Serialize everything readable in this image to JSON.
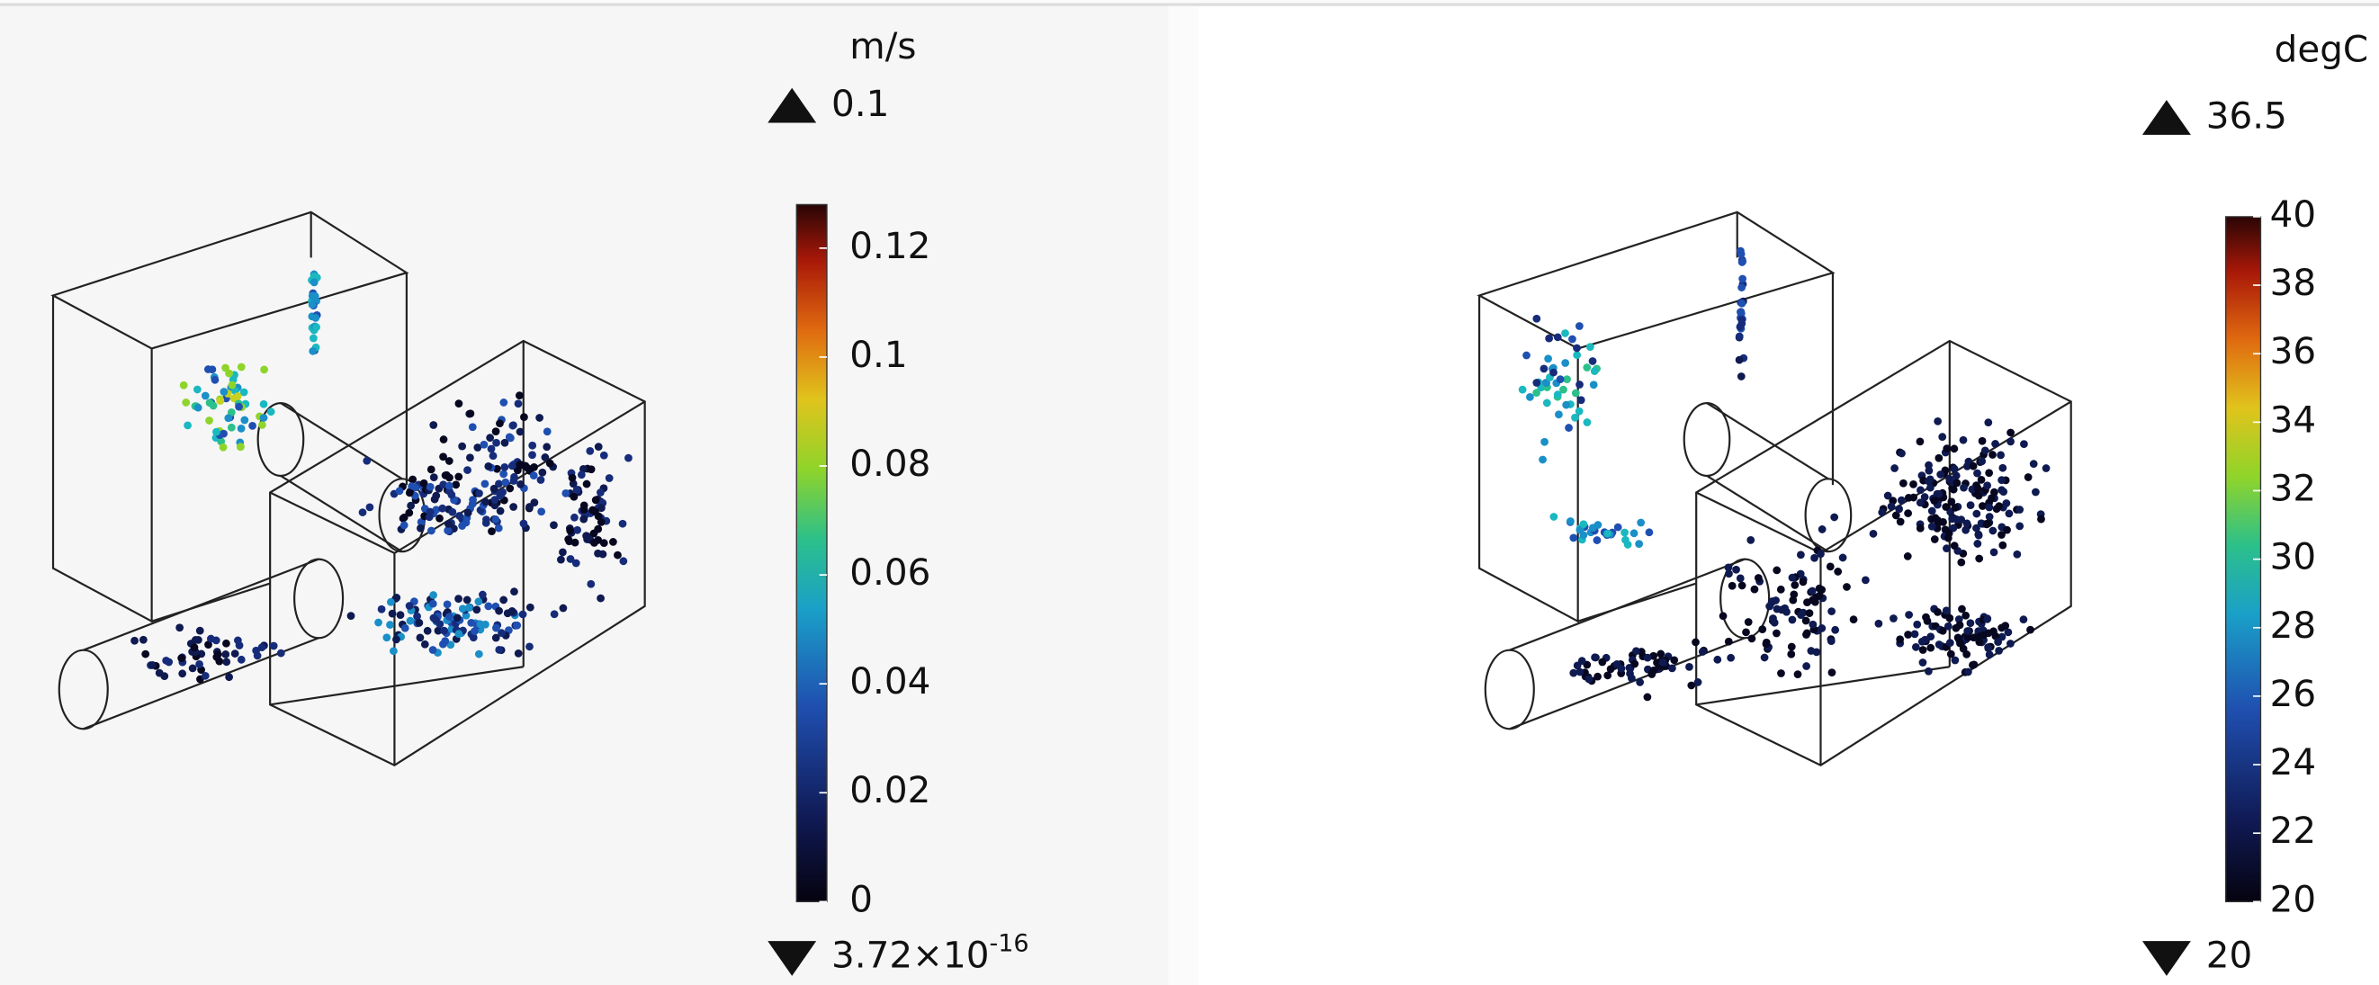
{
  "panels": [
    {
      "unit": "m/s",
      "max_label": "0.1",
      "min_label": {
        "mantissa": "3.72×10",
        "exponent": "-16"
      },
      "colorbar": {
        "lim": [
          0,
          0.128
        ],
        "ticks": [
          0,
          0.02,
          0.04,
          0.06,
          0.08,
          0.1,
          0.12
        ]
      }
    },
    {
      "unit": "degC",
      "max_label": "36.5",
      "min_label": "20",
      "colorbar": {
        "lim": [
          20,
          40
        ],
        "ticks": [
          20,
          22,
          24,
          26,
          28,
          30,
          32,
          34,
          36,
          38,
          40
        ]
      }
    }
  ]
}
